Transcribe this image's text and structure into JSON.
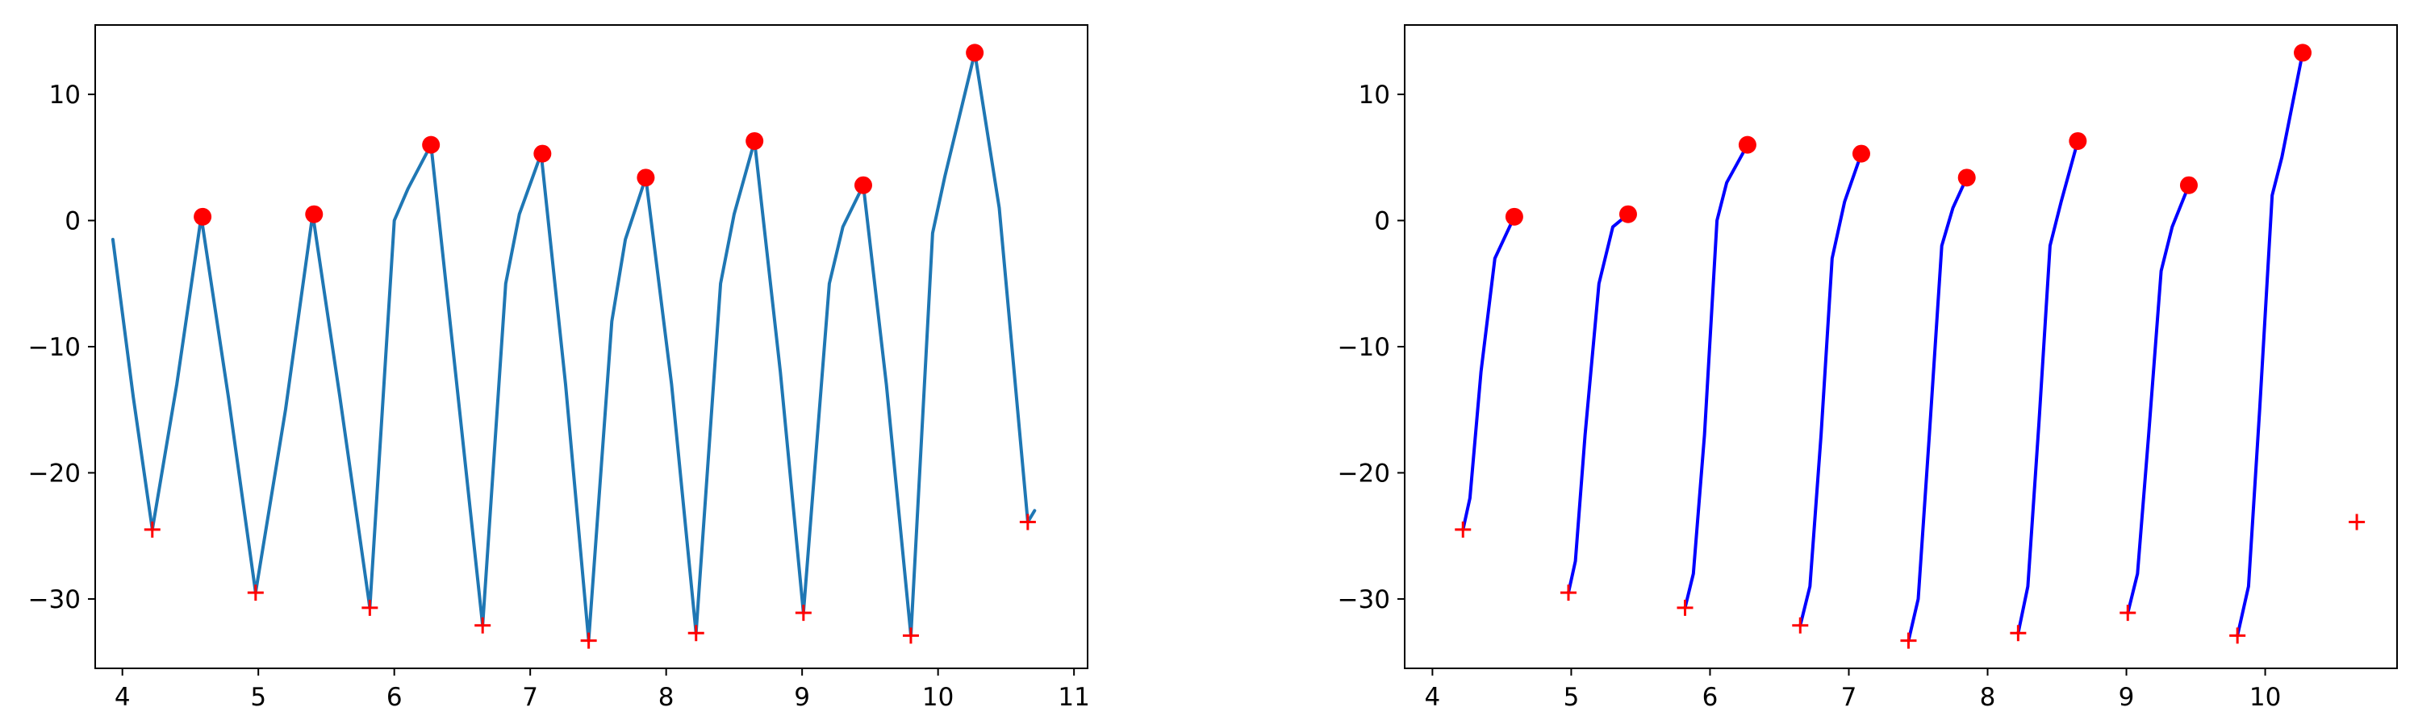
{
  "colors": {
    "left_line": "#1f77b4",
    "right_line": "#0000ff",
    "peak_marker": "#ff0000",
    "trough_marker": "#ff0000",
    "axes": "#000000"
  },
  "chart_data": [
    {
      "type": "line",
      "title": "",
      "xlabel": "",
      "ylabel": "",
      "xlim": [
        3.8,
        11.1
      ],
      "ylim": [
        -35.5,
        15.5
      ],
      "xticks": [
        4,
        5,
        6,
        7,
        8,
        9,
        10,
        11
      ],
      "yticks": [
        10,
        0,
        -10,
        -20,
        -30
      ],
      "grid": false,
      "legend": "none",
      "series": [
        {
          "style": "line",
          "color": "#1f77b4",
          "points": [
            [
              3.93,
              -1.5
            ],
            [
              4.08,
              -14
            ],
            [
              4.22,
              -24.5
            ],
            [
              4.4,
              -13
            ],
            [
              4.58,
              0.3
            ],
            [
              4.78,
              -14
            ],
            [
              4.98,
              -29.5
            ],
            [
              5.2,
              -15
            ],
            [
              5.4,
              0.5
            ],
            [
              5.6,
              -14
            ],
            [
              5.82,
              -30.7
            ],
            [
              6.0,
              0
            ],
            [
              6.1,
              2.5
            ],
            [
              6.27,
              6.0
            ],
            [
              6.45,
              -12
            ],
            [
              6.65,
              -32.1
            ],
            [
              6.82,
              -5
            ],
            [
              6.92,
              0.5
            ],
            [
              7.08,
              5.3
            ],
            [
              7.26,
              -13
            ],
            [
              7.43,
              -33.3
            ],
            [
              7.6,
              -8
            ],
            [
              7.7,
              -1.5
            ],
            [
              7.85,
              3.4
            ],
            [
              8.04,
              -13
            ],
            [
              8.22,
              -32.7
            ],
            [
              8.4,
              -5
            ],
            [
              8.5,
              0.5
            ],
            [
              8.65,
              6.3
            ],
            [
              8.84,
              -12
            ],
            [
              9.01,
              -31.1
            ],
            [
              9.2,
              -5
            ],
            [
              9.3,
              -0.5
            ],
            [
              9.45,
              2.8
            ],
            [
              9.62,
              -13
            ],
            [
              9.8,
              -32.9
            ],
            [
              9.96,
              -1
            ],
            [
              10.05,
              3.5
            ],
            [
              10.27,
              13.3
            ],
            [
              10.45,
              1
            ],
            [
              10.56,
              -12
            ],
            [
              10.66,
              -23.9
            ],
            [
              10.71,
              -23.0
            ]
          ]
        },
        {
          "style": "peaks",
          "marker": "circle",
          "color": "#ff0000",
          "x": [
            4.59,
            5.41,
            6.27,
            7.09,
            7.85,
            8.65,
            9.45,
            10.27
          ],
          "y": [
            0.3,
            0.5,
            6.0,
            5.3,
            3.4,
            6.3,
            2.8,
            13.3
          ]
        },
        {
          "style": "troughs",
          "marker": "plus",
          "color": "#ff0000",
          "x": [
            4.22,
            4.98,
            5.82,
            6.65,
            7.43,
            8.22,
            9.01,
            9.8,
            10.66
          ],
          "y": [
            -24.5,
            -29.5,
            -30.7,
            -32.1,
            -33.3,
            -32.7,
            -31.1,
            -32.9,
            -23.9
          ]
        }
      ]
    },
    {
      "type": "line",
      "title": "",
      "xlabel": "",
      "ylabel": "",
      "xlim": [
        3.8,
        10.95
      ],
      "ylim": [
        -35.5,
        15.5
      ],
      "xticks": [
        4,
        5,
        6,
        7,
        8,
        9,
        10
      ],
      "yticks": [
        10,
        0,
        -10,
        -20,
        -30
      ],
      "grid": false,
      "legend": "none",
      "segments": [
        {
          "color": "#0000ff",
          "points": [
            [
              4.22,
              -24.5
            ],
            [
              4.27,
              -22
            ],
            [
              4.35,
              -12
            ],
            [
              4.45,
              -3
            ],
            [
              4.59,
              0.3
            ]
          ]
        },
        {
          "color": "#0000ff",
          "points": [
            [
              4.98,
              -29.5
            ],
            [
              5.03,
              -27
            ],
            [
              5.1,
              -17
            ],
            [
              5.2,
              -5
            ],
            [
              5.3,
              -0.5
            ],
            [
              5.41,
              0.5
            ]
          ]
        },
        {
          "color": "#0000ff",
          "points": [
            [
              5.82,
              -30.7
            ],
            [
              5.88,
              -28
            ],
            [
              5.96,
              -17
            ],
            [
              6.05,
              0
            ],
            [
              6.12,
              3
            ],
            [
              6.27,
              6.0
            ]
          ]
        },
        {
          "color": "#0000ff",
          "points": [
            [
              6.65,
              -32.1
            ],
            [
              6.72,
              -29
            ],
            [
              6.8,
              -17
            ],
            [
              6.88,
              -3
            ],
            [
              6.97,
              1.5
            ],
            [
              7.09,
              5.3
            ]
          ]
        },
        {
          "color": "#0000ff",
          "points": [
            [
              7.43,
              -33.3
            ],
            [
              7.5,
              -30
            ],
            [
              7.58,
              -17
            ],
            [
              7.67,
              -2
            ],
            [
              7.75,
              1
            ],
            [
              7.85,
              3.4
            ]
          ]
        },
        {
          "color": "#0000ff",
          "points": [
            [
              8.22,
              -32.7
            ],
            [
              8.29,
              -29
            ],
            [
              8.37,
              -16
            ],
            [
              8.45,
              -2
            ],
            [
              8.53,
              1.5
            ],
            [
              8.65,
              6.3
            ]
          ]
        },
        {
          "color": "#0000ff",
          "points": [
            [
              9.01,
              -31.1
            ],
            [
              9.08,
              -28
            ],
            [
              9.16,
              -17
            ],
            [
              9.25,
              -4
            ],
            [
              9.33,
              -0.5
            ],
            [
              9.45,
              2.8
            ]
          ]
        },
        {
          "color": "#0000ff",
          "points": [
            [
              9.8,
              -32.9
            ],
            [
              9.88,
              -29
            ],
            [
              9.96,
              -15
            ],
            [
              10.05,
              2
            ],
            [
              10.12,
              5
            ],
            [
              10.27,
              13.3
            ]
          ]
        }
      ],
      "series": [
        {
          "style": "peaks",
          "marker": "circle",
          "color": "#ff0000",
          "x": [
            4.59,
            5.41,
            6.27,
            7.09,
            7.85,
            8.65,
            9.45,
            10.27
          ],
          "y": [
            0.3,
            0.5,
            6.0,
            5.3,
            3.4,
            6.3,
            2.8,
            13.3
          ]
        },
        {
          "style": "troughs",
          "marker": "plus",
          "color": "#ff0000",
          "x": [
            4.22,
            4.98,
            5.82,
            6.65,
            7.43,
            8.22,
            9.01,
            9.8,
            10.66
          ],
          "y": [
            -24.5,
            -29.5,
            -30.7,
            -32.1,
            -33.3,
            -32.7,
            -31.1,
            -32.9,
            -23.9
          ]
        }
      ]
    }
  ]
}
